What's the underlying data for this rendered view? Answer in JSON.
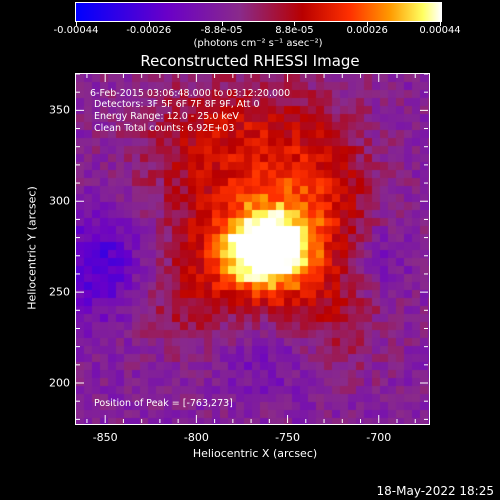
{
  "colorbar": {
    "ticks": [
      "-0.00044",
      "-0.00026",
      "-8.8e-05",
      "8.8e-05",
      "0.00026",
      "0.00044"
    ],
    "unit": "(photons cm⁻² s⁻¹ asec⁻²)"
  },
  "info": {
    "time_range": "6-Feb-2015 03:06:48.000 to 03:12:20.000",
    "detectors": "Detectors: 3F 5F 6F 7F 8F 9F, Att 0",
    "energy": "Energy Range: 12.0 - 25.0 keV",
    "clean": "Clean    Total counts: 6.92E+03",
    "peak": "Position of Peak = [-763,273]"
  },
  "footer": {
    "date": "18-May-2022 18:25"
  },
  "chart_data": {
    "type": "heatmap",
    "title": "Reconstructed RHESSI Image",
    "xlabel": "Heliocentric X (arcsec)",
    "ylabel": "Heliocentric Y (arcsec)",
    "xlim": [
      -866,
      -673
    ],
    "ylim": [
      178,
      370
    ],
    "xticks": [
      -850,
      -800,
      -750,
      -700
    ],
    "yticks": [
      200,
      250,
      300,
      350
    ],
    "xtick_labels": [
      "-850",
      "-800",
      "-750",
      "-700"
    ],
    "ytick_labels": [
      "200",
      "250",
      "300",
      "350"
    ],
    "zlim": [
      -0.00044,
      0.00044
    ],
    "peak": [
      -763,
      273
    ],
    "colors": {
      "min": "#0000ff",
      "mid": "#8a2a8a",
      "high": "#ff3000",
      "max": "#ffffff"
    }
  }
}
